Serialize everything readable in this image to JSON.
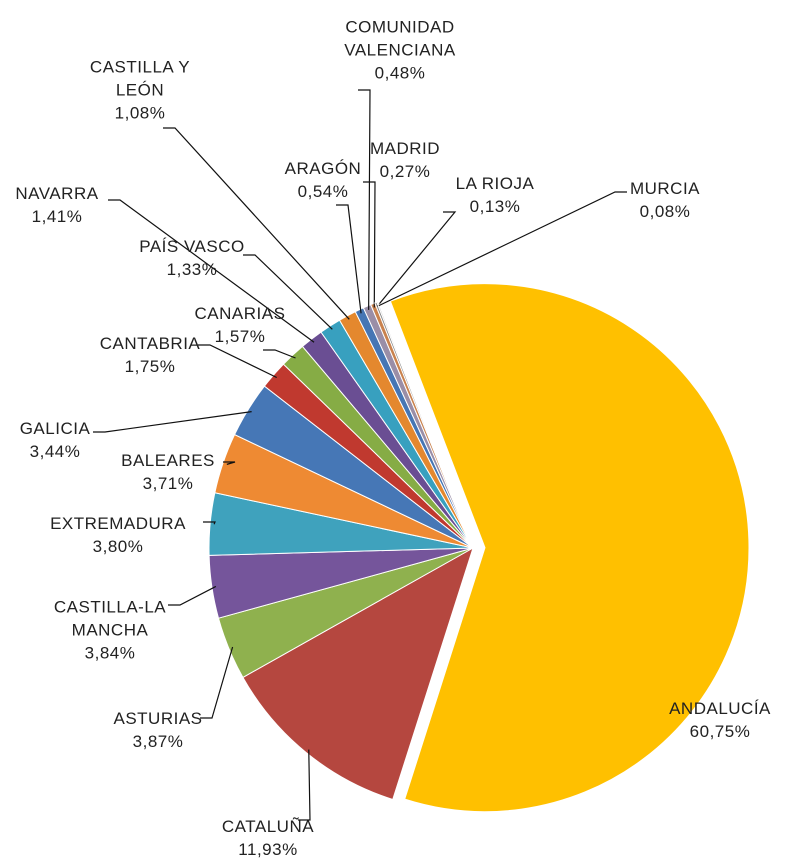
{
  "chart_data": {
    "type": "pie",
    "categories": [
      "ANDALUCÍA",
      "CATALUÑA",
      "ASTURIAS",
      "CASTILLA-LA MANCHA",
      "EXTREMADURA",
      "BALEARES",
      "GALICIA",
      "CANTABRIA",
      "CANARIAS",
      "NAVARRA",
      "PAÍS VASCO",
      "CASTILLA Y LEÓN",
      "ARAGÓN",
      "COMUNIDAD VALENCIANA",
      "MADRID",
      "LA RIOJA",
      "MURCIA"
    ],
    "values": [
      60.75,
      11.93,
      3.87,
      3.84,
      3.8,
      3.71,
      3.44,
      1.75,
      1.57,
      1.41,
      1.33,
      1.08,
      0.54,
      0.48,
      0.27,
      0.13,
      0.08
    ],
    "value_labels": [
      "60,75%",
      "11,93%",
      "3,87%",
      "3,84%",
      "3,80%",
      "3,71%",
      "3,44%",
      "1,75%",
      "1,57%",
      "1,41%",
      "1,33%",
      "1,08%",
      "0,54%",
      "0,48%",
      "0,27%",
      "0,13%",
      "0,08%"
    ],
    "colors": [
      "#ffc000",
      "#b5473f",
      "#8fb14e",
      "#75559b",
      "#3fa2bd",
      "#ee8a33",
      "#4677b6",
      "#c0392f",
      "#86ac45",
      "#6a4e93",
      "#38a0bf",
      "#e4882e",
      "#4676b4",
      "#9a8ea7",
      "#c9824e",
      "#8a8a8a",
      "#c0c0c0"
    ]
  }
}
